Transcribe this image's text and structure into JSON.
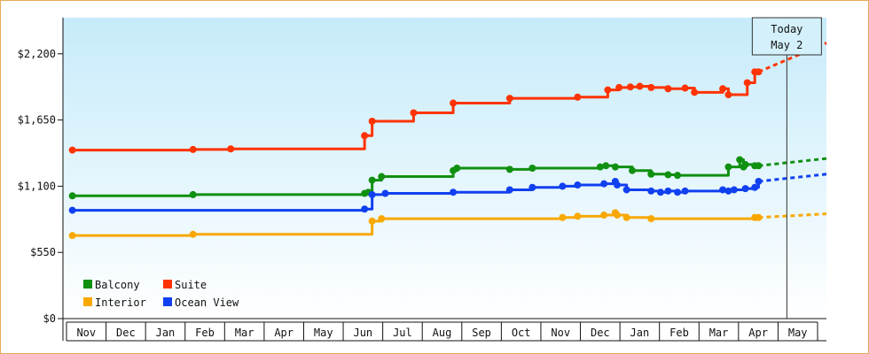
{
  "chart_data": {
    "type": "line",
    "title": "",
    "xlabel": "",
    "ylabel": "",
    "ylim": [
      0,
      2500
    ],
    "y_ticks": [
      {
        "value": 0,
        "label": "$0"
      },
      {
        "value": 550,
        "label": "$550"
      },
      {
        "value": 1100,
        "label": "$1,100"
      },
      {
        "value": 1650,
        "label": "$1,650"
      },
      {
        "value": 2200,
        "label": "$2,200"
      }
    ],
    "x_months": [
      "Nov",
      "Dec",
      "Jan",
      "Feb",
      "Mar",
      "Apr",
      "May",
      "Jun",
      "Jul",
      "Aug",
      "Sep",
      "Oct",
      "Nov",
      "Dec",
      "Jan",
      "Feb",
      "Mar",
      "Apr",
      "May"
    ],
    "x_range_days": [
      -5,
      400
    ],
    "today": {
      "label": "Today",
      "date": "May 2",
      "x": 379
    },
    "grid": "none",
    "legend": "bottom-left",
    "series": [
      {
        "name": "Suite",
        "color": "#ff3300",
        "points": [
          [
            0,
            1400
          ],
          [
            61,
            1400
          ],
          [
            64,
            1405
          ],
          [
            84,
            1410
          ],
          [
            154,
            1410
          ],
          [
            155,
            1520
          ],
          [
            157,
            1520
          ],
          [
            159,
            1640
          ],
          [
            178,
            1640
          ],
          [
            181,
            1710
          ],
          [
            200,
            1710
          ],
          [
            202,
            1790
          ],
          [
            231,
            1790
          ],
          [
            232,
            1830
          ],
          [
            266,
            1830
          ],
          [
            268,
            1840
          ],
          [
            282,
            1840
          ],
          [
            284,
            1900
          ],
          [
            289,
            1900
          ],
          [
            290,
            1920
          ],
          [
            295,
            1920
          ],
          [
            296,
            1925
          ],
          [
            300,
            1925
          ],
          [
            301,
            1930
          ],
          [
            305,
            1930
          ],
          [
            307,
            1920
          ],
          [
            315,
            1920
          ],
          [
            316,
            1910
          ],
          [
            324,
            1910
          ],
          [
            325,
            1915
          ],
          [
            328,
            1915
          ],
          [
            330,
            1880
          ],
          [
            344,
            1880
          ],
          [
            345,
            1910
          ],
          [
            347,
            1910
          ],
          [
            348,
            1860
          ],
          [
            357,
            1860
          ],
          [
            358,
            1960
          ],
          [
            361,
            1960
          ],
          [
            362,
            2050
          ],
          [
            364,
            2050
          ]
        ],
        "forecast": [
          [
            364,
            2050
          ],
          [
            400,
            2290
          ]
        ]
      },
      {
        "name": "Balcony",
        "color": "#109010",
        "points": [
          [
            0,
            1020
          ],
          [
            61,
            1020
          ],
          [
            64,
            1030
          ],
          [
            154,
            1030
          ],
          [
            155,
            1040
          ],
          [
            157,
            1050
          ],
          [
            159,
            1150
          ],
          [
            162,
            1150
          ],
          [
            164,
            1180
          ],
          [
            200,
            1180
          ],
          [
            202,
            1230
          ],
          [
            204,
            1250
          ],
          [
            231,
            1250
          ],
          [
            232,
            1240
          ],
          [
            241,
            1240
          ],
          [
            244,
            1250
          ],
          [
            259,
            1250
          ],
          [
            266,
            1250
          ],
          [
            268,
            1250
          ],
          [
            275,
            1250
          ],
          [
            280,
            1260
          ],
          [
            283,
            1270
          ],
          [
            287,
            1270
          ],
          [
            288,
            1260
          ],
          [
            295,
            1260
          ],
          [
            297,
            1230
          ],
          [
            305,
            1230
          ],
          [
            307,
            1200
          ],
          [
            315,
            1200
          ],
          [
            316,
            1195
          ],
          [
            320,
            1195
          ],
          [
            321,
            1190
          ],
          [
            324,
            1190
          ],
          [
            325,
            1190
          ],
          [
            328,
            1190
          ],
          [
            330,
            1190
          ],
          [
            344,
            1190
          ],
          [
            345,
            1190
          ],
          [
            347,
            1190
          ],
          [
            348,
            1260
          ],
          [
            352,
            1260
          ],
          [
            354,
            1320
          ],
          [
            356,
            1260
          ],
          [
            357,
            1280
          ],
          [
            361,
            1280
          ],
          [
            362,
            1270
          ],
          [
            364,
            1270
          ]
        ],
        "forecast": [
          [
            364,
            1270
          ],
          [
            400,
            1330
          ]
        ]
      },
      {
        "name": "Ocean View",
        "color": "#1040f0",
        "points": [
          [
            0,
            900
          ],
          [
            61,
            900
          ],
          [
            64,
            900
          ],
          [
            154,
            900
          ],
          [
            155,
            910
          ],
          [
            157,
            910
          ],
          [
            159,
            1030
          ],
          [
            164,
            1030
          ],
          [
            166,
            1040
          ],
          [
            200,
            1040
          ],
          [
            202,
            1050
          ],
          [
            231,
            1050
          ],
          [
            232,
            1070
          ],
          [
            241,
            1070
          ],
          [
            244,
            1090
          ],
          [
            259,
            1090
          ],
          [
            260,
            1100
          ],
          [
            266,
            1100
          ],
          [
            268,
            1110
          ],
          [
            280,
            1110
          ],
          [
            282,
            1120
          ],
          [
            287,
            1120
          ],
          [
            288,
            1140
          ],
          [
            289,
            1110
          ],
          [
            293,
            1110
          ],
          [
            294,
            1070
          ],
          [
            305,
            1070
          ],
          [
            307,
            1060
          ],
          [
            310,
            1060
          ],
          [
            312,
            1050
          ],
          [
            315,
            1050
          ],
          [
            316,
            1060
          ],
          [
            320,
            1060
          ],
          [
            321,
            1050
          ],
          [
            324,
            1050
          ],
          [
            325,
            1060
          ],
          [
            328,
            1060
          ],
          [
            330,
            1060
          ],
          [
            344,
            1060
          ],
          [
            345,
            1070
          ],
          [
            347,
            1070
          ],
          [
            348,
            1060
          ],
          [
            350,
            1060
          ],
          [
            351,
            1070
          ],
          [
            352,
            1070
          ],
          [
            354,
            1070
          ],
          [
            356,
            1070
          ],
          [
            357,
            1080
          ],
          [
            361,
            1080
          ],
          [
            362,
            1090
          ],
          [
            364,
            1140
          ]
        ],
        "forecast": [
          [
            364,
            1140
          ],
          [
            400,
            1200
          ]
        ]
      },
      {
        "name": "Interior",
        "color": "#f8a800",
        "points": [
          [
            0,
            690
          ],
          [
            61,
            690
          ],
          [
            64,
            700
          ],
          [
            154,
            700
          ],
          [
            155,
            700
          ],
          [
            157,
            700
          ],
          [
            159,
            810
          ],
          [
            162,
            810
          ],
          [
            164,
            830
          ],
          [
            200,
            830
          ],
          [
            232,
            830
          ],
          [
            244,
            830
          ],
          [
            259,
            830
          ],
          [
            260,
            840
          ],
          [
            266,
            840
          ],
          [
            268,
            850
          ],
          [
            280,
            850
          ],
          [
            282,
            860
          ],
          [
            287,
            860
          ],
          [
            288,
            880
          ],
          [
            289,
            860
          ],
          [
            293,
            860
          ],
          [
            294,
            840
          ],
          [
            305,
            840
          ],
          [
            307,
            830
          ],
          [
            315,
            830
          ],
          [
            316,
            830
          ],
          [
            320,
            830
          ],
          [
            321,
            830
          ],
          [
            324,
            830
          ],
          [
            325,
            830
          ],
          [
            330,
            830
          ],
          [
            344,
            830
          ],
          [
            345,
            830
          ],
          [
            347,
            830
          ],
          [
            348,
            830
          ],
          [
            351,
            830
          ],
          [
            357,
            830
          ],
          [
            361,
            830
          ],
          [
            362,
            840
          ],
          [
            364,
            840
          ]
        ],
        "forecast": [
          [
            364,
            840
          ],
          [
            400,
            870
          ]
        ]
      }
    ]
  }
}
